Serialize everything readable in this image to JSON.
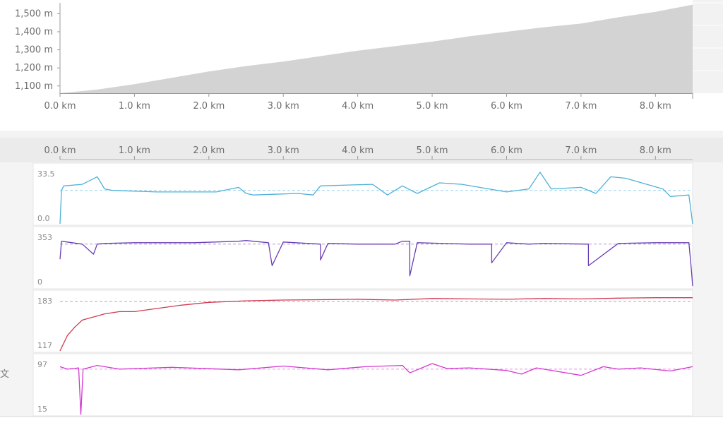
{
  "chart_data": [
    {
      "type": "area",
      "name": "elevation-profile",
      "x_unit": "km",
      "y_unit": "m",
      "xlim": [
        0,
        8.5
      ],
      "ylim": [
        1060,
        1560
      ],
      "x_ticks": [
        "0.0 km",
        "1.0 km",
        "2.0 km",
        "3.0 km",
        "4.0 km",
        "5.0 km",
        "6.0 km",
        "7.0 km",
        "8.0 km"
      ],
      "y_ticks": [
        "1,500 m",
        "1,400 m",
        "1,300 m",
        "1,200 m",
        "1,100 m"
      ],
      "x": [
        0,
        0.5,
        1.0,
        1.5,
        2.0,
        2.5,
        3.0,
        3.5,
        4.0,
        4.5,
        5.0,
        5.5,
        6.0,
        6.5,
        7.0,
        7.5,
        8.0,
        8.5
      ],
      "values": [
        1060,
        1080,
        1110,
        1145,
        1180,
        1210,
        1235,
        1265,
        1295,
        1320,
        1345,
        1375,
        1400,
        1425,
        1445,
        1480,
        1510,
        1550
      ]
    },
    {
      "type": "line",
      "name": "panel-1",
      "color": "#4fb0d8",
      "ylim": [
        0,
        33.5
      ],
      "y_ticks": [
        "33.5",
        "0.0"
      ],
      "average": 22,
      "x": [
        0,
        0.02,
        0.05,
        0.3,
        0.5,
        0.6,
        0.7,
        1.3,
        2.1,
        2.4,
        2.5,
        2.6,
        3.2,
        3.4,
        3.5,
        4.2,
        4.4,
        4.6,
        4.8,
        5.1,
        5.4,
        6.0,
        6.3,
        6.45,
        6.6,
        7.0,
        7.2,
        7.4,
        7.6,
        8.1,
        8.2,
        8.45,
        8.5
      ],
      "values": [
        0,
        22,
        25,
        26,
        31,
        23,
        22,
        21,
        21,
        24,
        20,
        19,
        20,
        19,
        25,
        26,
        19,
        25,
        20,
        27,
        26,
        21,
        23,
        34,
        23,
        24,
        20,
        31,
        30,
        23,
        18,
        19,
        0
      ]
    },
    {
      "type": "line",
      "name": "panel-2",
      "color": "#6a3fb5",
      "ylim": [
        0,
        353
      ],
      "y_ticks": [
        "353",
        "0"
      ],
      "average": 300,
      "x": [
        0,
        0.02,
        0.3,
        0.45,
        0.5,
        0.6,
        1.0,
        1.8,
        2.4,
        2.5,
        2.8,
        2.85,
        3.0,
        3.5,
        3.5,
        3.6,
        4.0,
        4.5,
        4.6,
        4.7,
        4.7,
        4.8,
        5.5,
        5.8,
        5.8,
        6.0,
        6.3,
        6.5,
        7.1,
        7.1,
        7.5,
        8.0,
        8.45,
        8.48,
        8.5
      ],
      "values": [
        195,
        320,
        300,
        230,
        300,
        305,
        310,
        310,
        320,
        325,
        310,
        150,
        315,
        300,
        190,
        305,
        300,
        300,
        320,
        320,
        80,
        310,
        300,
        300,
        170,
        310,
        300,
        305,
        300,
        150,
        305,
        310,
        310,
        140,
        10
      ]
    },
    {
      "type": "line",
      "name": "panel-3",
      "color": "#d03a52",
      "ylim": [
        117,
        183
      ],
      "y_ticks": [
        "183",
        "117"
      ],
      "average": 181,
      "x": [
        0,
        0.1,
        0.2,
        0.3,
        0.45,
        0.6,
        0.8,
        1.0,
        1.3,
        1.6,
        2.0,
        2.5,
        3.0,
        3.5,
        4.0,
        4.5,
        5.0,
        5.5,
        6.0,
        6.5,
        7.0,
        7.5,
        8.0,
        8.5
      ],
      "values": [
        117,
        137,
        148,
        157,
        161,
        165,
        168,
        168,
        172,
        176,
        180,
        182,
        183,
        183.5,
        184,
        183,
        185,
        184.5,
        184,
        185,
        184.5,
        185.5,
        186,
        186
      ]
    },
    {
      "type": "line",
      "name": "panel-4",
      "color": "#d338d0",
      "ylim": [
        15,
        97
      ],
      "y_ticks": [
        "97",
        "15"
      ],
      "average": 88,
      "x": [
        0,
        0.1,
        0.25,
        0.28,
        0.31,
        0.5,
        0.8,
        1.5,
        2.4,
        3.0,
        3.6,
        4.1,
        4.6,
        4.7,
        5.0,
        5.2,
        5.5,
        6.0,
        6.2,
        6.4,
        7.0,
        7.3,
        7.5,
        7.8,
        8.2,
        8.5
      ],
      "values": [
        92,
        88,
        90,
        15,
        88,
        94,
        88,
        91,
        87,
        93,
        87,
        92,
        94,
        82,
        97,
        89,
        90,
        86,
        80,
        90,
        78,
        92,
        88,
        90,
        85,
        92
      ]
    }
  ],
  "left_label": "文"
}
